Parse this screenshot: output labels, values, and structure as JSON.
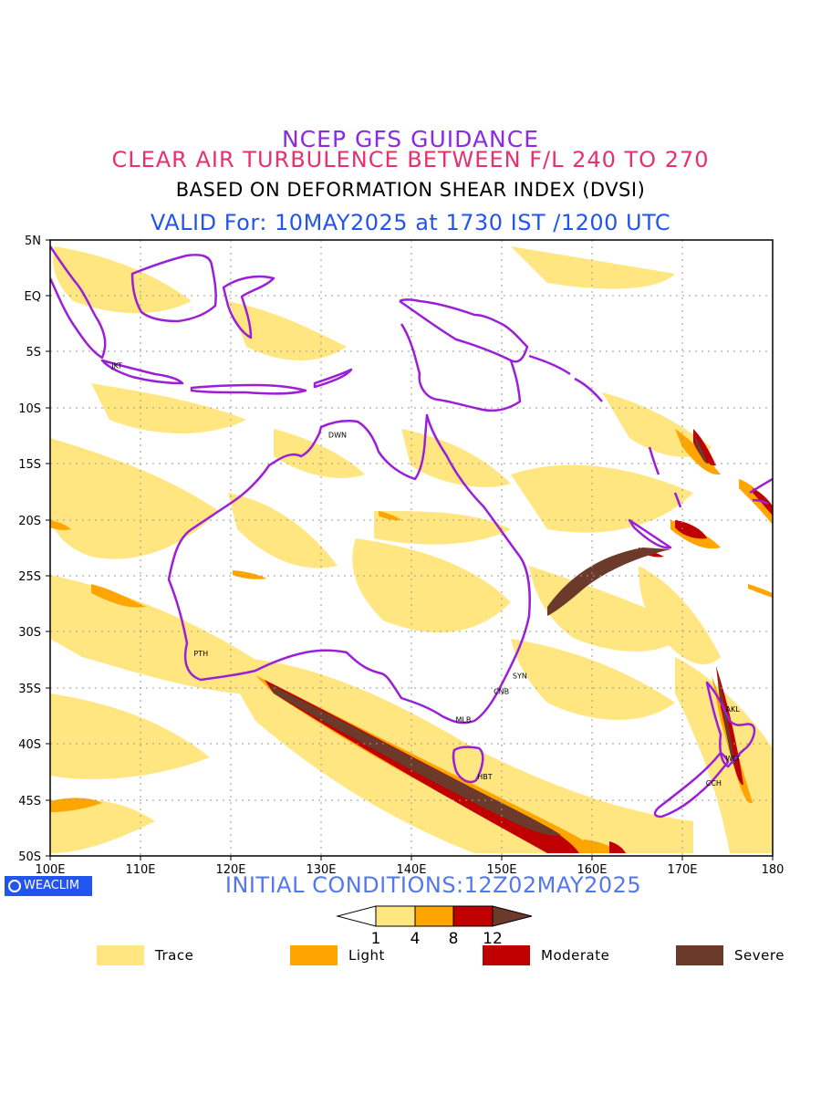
{
  "titles": {
    "line1": "NCEP GFS GUIDANCE",
    "line2": "CLEAR AIR TURBULENCE BETWEEN F/L 240 TO 270",
    "line3": "BASED ON DEFORMATION SHEAR INDEX (DVSI)",
    "line4": "VALID For: 10MAY2025 at 1730 IST /1200 UTC"
  },
  "axes": {
    "lat_labels": [
      "5N",
      "EQ",
      "5S",
      "10S",
      "15S",
      "20S",
      "25S",
      "30S",
      "35S",
      "40S",
      "45S",
      "50S"
    ],
    "lon_labels": [
      "100E",
      "110E",
      "120E",
      "130E",
      "140E",
      "150E",
      "160E",
      "170E",
      "180"
    ]
  },
  "cities": [
    {
      "code": "JKT",
      "lon": 106.8,
      "lat": -6.2
    },
    {
      "code": "DWN",
      "lon": 130.8,
      "lat": -12.4
    },
    {
      "code": "PTH",
      "lon": 115.9,
      "lat": -31.9
    },
    {
      "code": "SYN",
      "lon": 151.2,
      "lat": -33.9
    },
    {
      "code": "CNB",
      "lon": 149.1,
      "lat": -35.3
    },
    {
      "code": "MLB",
      "lon": 144.9,
      "lat": -37.8
    },
    {
      "code": "HBT",
      "lon": 147.3,
      "lat": -42.9
    },
    {
      "code": "AKL",
      "lon": 174.8,
      "lat": -36.9
    },
    {
      "code": "WLT",
      "lon": 174.8,
      "lat": -41.3
    },
    {
      "code": "CCH",
      "lon": 172.6,
      "lat": -43.5
    }
  ],
  "logo": "WEACLIM",
  "initial_conditions": "INITIAL CONDITIONS:12Z02MAY2025",
  "colorbar": {
    "ticks": [
      "1",
      "4",
      "8",
      "12"
    ],
    "colors": [
      "#ffe680",
      "#ffa500",
      "#c00000",
      "#6b3a2a"
    ]
  },
  "legend": [
    {
      "label": "Trace",
      "color": "#ffe680"
    },
    {
      "label": "Light",
      "color": "#ffa500"
    },
    {
      "label": "Moderate",
      "color": "#c00000"
    },
    {
      "label": "Severe",
      "color": "#6b3a2a"
    }
  ]
}
